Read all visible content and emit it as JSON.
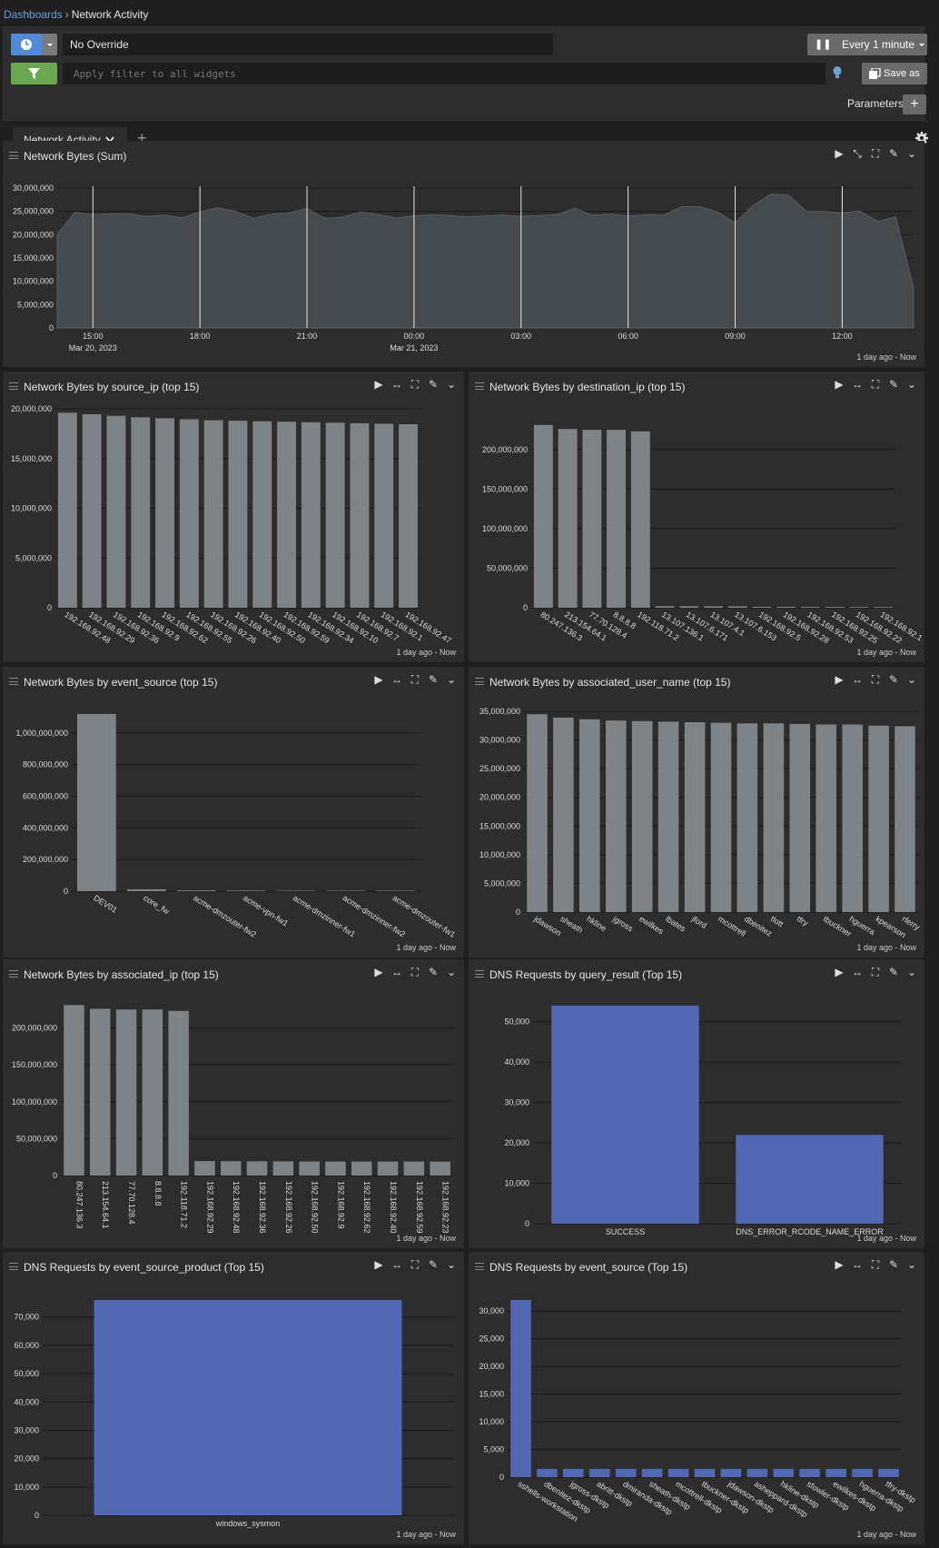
{
  "breadcrumb": {
    "root": "Dashboards",
    "current": "Network Activity"
  },
  "toolbar": {
    "override": "No Override",
    "refresh": "Every 1 minute",
    "filter_placeholder": "Apply filter to all widgets",
    "save_label": "Save as",
    "parameters_label": "Parameters",
    "parameters_add": "+"
  },
  "tabs": [
    {
      "label": "Network Activity"
    }
  ],
  "tab_add": "+",
  "colors": {
    "bar_gray": "#7d8387",
    "bar_blue": "#5368b5",
    "area": "#454a4e",
    "accent": "#4f8ad6",
    "filter": "#6aa84f"
  },
  "widgets": [
    {
      "title": "Network Bytes (Sum)",
      "footer": "1 day ago - Now",
      "chart_data": {
        "type": "area",
        "x": [
          "Mar 20 14:00",
          "14:30",
          "15:00",
          "15:30",
          "16:00",
          "16:30",
          "17:00",
          "17:30",
          "18:00",
          "18:30",
          "19:00",
          "19:30",
          "20:00",
          "20:30",
          "21:00",
          "21:30",
          "22:00",
          "22:30",
          "23:00",
          "23:30",
          "Mar 21 00:00",
          "00:30",
          "01:00",
          "01:30",
          "02:00",
          "02:30",
          "03:00",
          "03:30",
          "04:00",
          "04:30",
          "05:00",
          "05:30",
          "06:00",
          "06:30",
          "07:00",
          "07:30",
          "08:00",
          "08:30",
          "09:00",
          "09:30",
          "10:00",
          "10:30",
          "11:00",
          "11:30",
          "12:00",
          "12:30",
          "13:00",
          "13:30",
          "14:00"
        ],
        "values": [
          20000000,
          24800000,
          24300000,
          24500000,
          24500000,
          23900000,
          24200000,
          23600000,
          24900000,
          25800000,
          25000000,
          23500000,
          24400000,
          24700000,
          25600000,
          23500000,
          23700000,
          24900000,
          24300000,
          23600000,
          24000000,
          24300000,
          24100000,
          23800000,
          24000000,
          24200000,
          23900000,
          24100000,
          24300000,
          25700000,
          24200000,
          24400000,
          24000000,
          24300000,
          24200000,
          26000000,
          26000000,
          24900000,
          22500000,
          26200000,
          28700000,
          28500000,
          25000000,
          25000000,
          24700000,
          25100000,
          22800000,
          23800000,
          8500000
        ],
        "xticks": [
          {
            "label": "15:00",
            "sub": "Mar 20, 2023"
          },
          {
            "label": "18:00",
            "sub": ""
          },
          {
            "label": "21:00",
            "sub": ""
          },
          {
            "label": "00:00",
            "sub": "Mar 21, 2023"
          },
          {
            "label": "03:00",
            "sub": ""
          },
          {
            "label": "06:00",
            "sub": ""
          },
          {
            "label": "09:00",
            "sub": ""
          },
          {
            "label": "12:00",
            "sub": ""
          }
        ],
        "yticks": [
          "0",
          "5,000,000",
          "10,000,000",
          "15,000,000",
          "20,000,000",
          "25,000,000",
          "30,000,000"
        ],
        "ylim": [
          0,
          30000000
        ]
      }
    },
    {
      "title": "Network Bytes by source_ip (top 15)",
      "footer": "1 day ago - Now",
      "chart_data": {
        "type": "bar",
        "categories": [
          "192.168.92.48",
          "192.168.92.29",
          "192.168.92.36",
          "192.168.92.9",
          "192.168.92.62",
          "192.168.92.55",
          "192.168.92.26",
          "192.168.92.40",
          "192.168.92.50",
          "192.168.92.59",
          "192.168.92.34",
          "192.168.92.10",
          "192.168.92.7",
          "192.168.92.1",
          "192.168.92.47"
        ],
        "values": [
          19600000,
          19450000,
          19300000,
          19150000,
          19050000,
          18950000,
          18850000,
          18800000,
          18750000,
          18700000,
          18650000,
          18600000,
          18550000,
          18500000,
          18450000
        ],
        "yticks": [
          "0",
          "5,000,000",
          "10,000,000",
          "15,000,000",
          "20,000,000"
        ],
        "ylim": [
          0,
          20000000
        ]
      }
    },
    {
      "title": "Network Bytes by destination_ip (top 15)",
      "footer": "1 day ago - Now",
      "chart_data": {
        "type": "bar",
        "categories": [
          "80.247.136.3",
          "213.154.64.1",
          "77.70.128.4",
          "8.8.8.8",
          "192.118.71.2",
          "13.107.136.1",
          "13.107.6.171",
          "13.107.4.1",
          "13.107.6.153",
          "192.168.92.5",
          "192.168.92.28",
          "192.168.92.53",
          "192.168.92.25",
          "192.168.92.22",
          "192.168.92.1"
        ],
        "values": [
          231000000,
          226000000,
          225000000,
          225000000,
          223000000,
          2000000,
          2000000,
          1800000,
          1800000,
          1200000,
          1100000,
          1000000,
          1000000,
          900000,
          900000
        ],
        "yticks": [
          "0",
          "50,000,000",
          "100,000,000",
          "150,000,000",
          "200,000,000"
        ],
        "ylim": [
          0,
          240000000
        ]
      }
    },
    {
      "title": "Network Bytes by event_source (top 15)",
      "footer": "1 day ago - Now",
      "chart_data": {
        "type": "bar",
        "categories": [
          "DEV01",
          "core_fw",
          "acme-dmzouter-fw2",
          "acme-vpn-fw1",
          "acme-dmzinner-fw1",
          "acme-dmzinner-fw2",
          "acme-dmzouter-fw1"
        ],
        "values": [
          1120000000,
          12000000,
          5000000,
          4000000,
          3000000,
          3000000,
          3000000
        ],
        "yticks": [
          "0",
          "200,000,000",
          "400,000,000",
          "600,000,000",
          "800,000,000",
          "1,000,000,000"
        ],
        "ylim": [
          0,
          1200000000
        ]
      }
    },
    {
      "title": "Network Bytes by associated_user_name (top 15)",
      "footer": "1 day ago - Now",
      "chart_data": {
        "type": "bar",
        "categories": [
          "jdawson",
          "sheath",
          "hkline",
          "jgross",
          "ewilkes",
          "lbates",
          "jford",
          "mcottrell",
          "dbenitez",
          "tlott",
          "tfry",
          "tbuckner",
          "hguerra",
          "kpearson",
          "rferry"
        ],
        "values": [
          34500000,
          33900000,
          33600000,
          33400000,
          33300000,
          33200000,
          33100000,
          33000000,
          32900000,
          32900000,
          32800000,
          32700000,
          32700000,
          32500000,
          32400000
        ],
        "yticks": [
          "0",
          "5,000,000",
          "10,000,000",
          "15,000,000",
          "20,000,000",
          "25,000,000",
          "30,000,000",
          "35,000,000"
        ],
        "ylim": [
          0,
          35000000
        ]
      }
    },
    {
      "title": "Network Bytes by associated_ip (top 15)",
      "footer": "1 day ago - Now",
      "chart_data": {
        "type": "bar",
        "categories": [
          "80.247.136.3",
          "213.154.64.1",
          "77.70.128.4",
          "8.8.8.8",
          "192.118.71.2",
          "192.168.92.29",
          "192.168.92.48",
          "192.168.92.36",
          "192.168.92.26",
          "192.168.92.50",
          "192.168.92.9",
          "192.168.92.62",
          "192.168.92.40",
          "192.168.92.59",
          "192.168.92.23"
        ],
        "values": [
          231000000,
          226000000,
          225000000,
          225000000,
          223000000,
          19600000,
          19400000,
          19300000,
          19200000,
          19100000,
          19000000,
          19000000,
          18900000,
          18900000,
          18800000
        ],
        "yticks": [
          "0",
          "50,000,000",
          "100,000,000",
          "150,000,000",
          "200,000,000"
        ],
        "ylim": [
          0,
          240000000
        ]
      }
    },
    {
      "title": "DNS Requests by query_result (Top 15)",
      "footer": "1 day ago - Now",
      "chart_data": {
        "type": "bar",
        "categories": [
          "SUCCESS",
          "DNS_ERROR_RCODE_NAME_ERROR"
        ],
        "values": [
          54000,
          22000
        ],
        "yticks": [
          "0",
          "10,000",
          "20,000",
          "30,000",
          "40,000",
          "50,000"
        ],
        "ylim": [
          0,
          56000
        ]
      }
    },
    {
      "title": "DNS Requests by event_source_product (Top 15)",
      "footer": "1 day ago - Now",
      "chart_data": {
        "type": "bar",
        "categories": [
          "windows_sysmon"
        ],
        "values": [
          76000
        ],
        "yticks": [
          "0",
          "10,000",
          "20,000",
          "30,000",
          "40,000",
          "50,000",
          "60,000",
          "70,000"
        ],
        "ylim": [
          0,
          76000
        ]
      }
    },
    {
      "title": "DNS Requests by event_source (Top 15)",
      "footer": "1 day ago - Now",
      "chart_data": {
        "type": "bar",
        "categories": [
          "sshells-workstation",
          "dbenitez-dkstp",
          "jgross-dkstp",
          "abritt-dkstp",
          "dmiranda-dkstp",
          "sheath-dkstp",
          "mcottrell-dkstp",
          "tbuckner-dkstp",
          "jdawson-dkstp",
          "asheppard-dkstp",
          "hkline-dkstp",
          "sfowler-dkstp",
          "ewilkes-dkstp",
          "hguerra-dkstp",
          "tfry-dkstp"
        ],
        "values": [
          32000,
          1500,
          1500,
          1500,
          1500,
          1500,
          1500,
          1500,
          1500,
          1500,
          1500,
          1500,
          1500,
          1500,
          1500
        ],
        "yticks": [
          "0",
          "5,000",
          "10,000",
          "15,000",
          "20,000",
          "25,000",
          "30,000"
        ],
        "ylim": [
          0,
          32000
        ]
      }
    }
  ]
}
